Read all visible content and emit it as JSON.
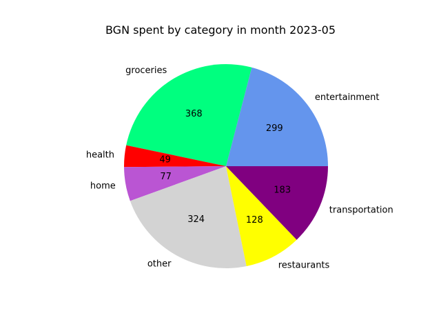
{
  "chart_data": {
    "type": "pie",
    "title": "BGN spent by category in month 2023-05",
    "start_angle_deg": 0,
    "direction": "counterclockwise",
    "slices": [
      {
        "label": "entertainment",
        "value": 299,
        "color": "#6495ED"
      },
      {
        "label": "groceries",
        "value": 368,
        "color": "#00FF7F"
      },
      {
        "label": "health",
        "value": 49,
        "color": "#FF0000"
      },
      {
        "label": "home",
        "value": 77,
        "color": "#BA55D3"
      },
      {
        "label": "other",
        "value": 324,
        "color": "#D3D3D3"
      },
      {
        "label": "restaurants",
        "value": 128,
        "color": "#FFFF00"
      },
      {
        "label": "transportation",
        "value": 183,
        "color": "#800080"
      }
    ]
  }
}
